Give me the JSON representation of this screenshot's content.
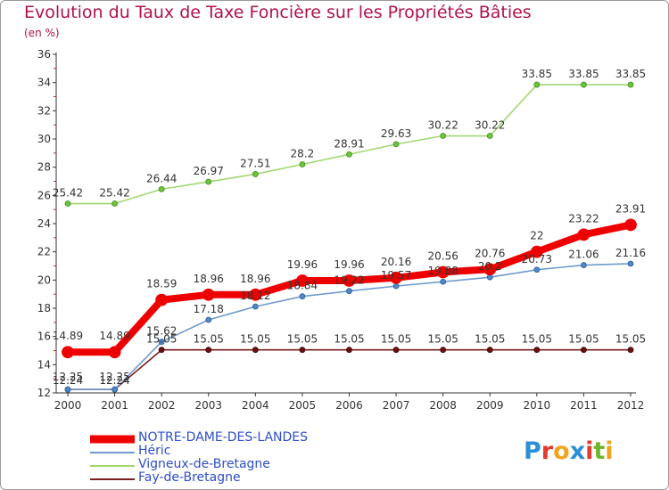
{
  "title": "Evolution du Taux de Taxe Foncière sur les Propriétés Bâties",
  "subtitle": "(en %)",
  "logo": {
    "text": "Proxiti",
    "letters": [
      {
        "ch": "P",
        "color": "#2b8fd6"
      },
      {
        "ch": "r",
        "color": "#e23a2c"
      },
      {
        "ch": "o",
        "color": "#f2a21d"
      },
      {
        "ch": "x",
        "color": "#2b8fd6"
      },
      {
        "ch": "i",
        "color": "#e23a2c"
      },
      {
        "ch": "t",
        "color": "#6fb52c"
      },
      {
        "ch": "i",
        "color": "#f2a21d"
      }
    ]
  },
  "chart_data": {
    "type": "line",
    "title": "Evolution du Taux de Taxe Foncière sur les Propriétés Bâties",
    "ylabel": "(en %)",
    "x": [
      "2000",
      "2001",
      "2002",
      "2003",
      "2004",
      "2005",
      "2006",
      "2007",
      "2008",
      "2009",
      "2010",
      "2011",
      "2012"
    ],
    "ylim": [
      12,
      36
    ],
    "yticks": [
      12,
      14,
      16,
      18,
      20,
      22,
      24,
      26,
      28,
      30,
      32,
      34,
      36
    ],
    "grid": false,
    "legend_position": "bottom-left",
    "series": [
      {
        "name": "NOTRE-DAME-DES-LANDES",
        "color": "#ee0000",
        "values": [
          14.89,
          14.89,
          18.59,
          18.96,
          18.96,
          19.96,
          19.96,
          20.16,
          20.56,
          20.76,
          22,
          23.22,
          23.91
        ],
        "labels": [
          "14.89",
          "14.89",
          "18.59",
          "18.96",
          "18.96",
          "19.96",
          "19.96",
          "20.16",
          "20.56",
          "20.76",
          "22",
          "23.22",
          "23.91"
        ]
      },
      {
        "name": "Héric",
        "color": "#6f9ccc",
        "values": [
          12.25,
          12.25,
          15.62,
          17.18,
          18.12,
          18.84,
          19.22,
          19.57,
          19.88,
          20.2,
          20.73,
          21.06,
          21.16
        ],
        "labels": [
          "12.25",
          "12.25",
          "15.62",
          "17.18",
          "18.12",
          "18.84",
          "19.22",
          "19.57",
          "19.88",
          "20.2",
          "20.73",
          "21.06",
          "21.16"
        ]
      },
      {
        "name": "Vigneux-de-Bretagne",
        "color": "#9fd870",
        "values": [
          25.42,
          25.42,
          26.44,
          26.97,
          27.51,
          28.2,
          28.91,
          29.63,
          30.22,
          30.22,
          33.85,
          33.85,
          33.85
        ],
        "labels": [
          "25.42",
          "25.42",
          "26.44",
          "26.97",
          "27.51",
          "28.2",
          "28.91",
          "29.63",
          "30.22",
          "30.22",
          "33.85",
          "33.85",
          "33.85"
        ]
      },
      {
        "name": "Fay-de-Bretagne",
        "color": "#7a1e1e",
        "values": [
          12.24,
          12.24,
          15.05,
          15.05,
          15.05,
          15.05,
          15.05,
          15.05,
          15.05,
          15.05,
          15.05,
          15.05,
          15.05
        ],
        "labels": [
          "12.24",
          "12.24",
          "15.05",
          "15.05",
          "15.05",
          "15.05",
          "15.05",
          "15.05",
          "15.05",
          "15.05",
          "15.05",
          "15.05",
          "15.05"
        ]
      }
    ]
  }
}
